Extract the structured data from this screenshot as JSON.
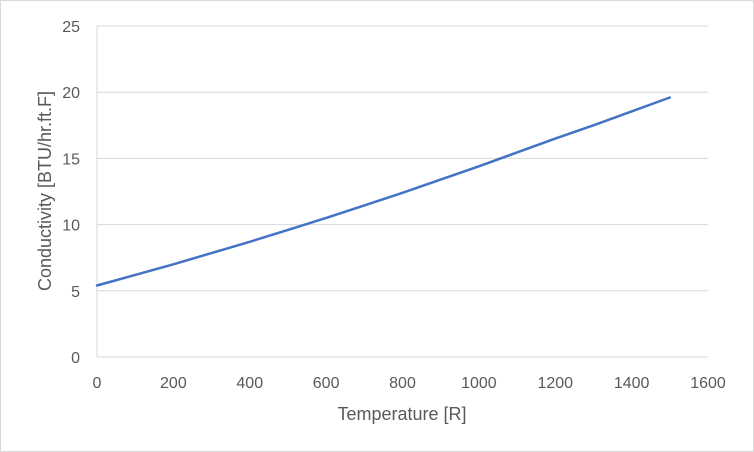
{
  "chart_data": {
    "type": "line",
    "title": "",
    "xlabel": "Temperature [R]",
    "ylabel": "Conductivity [BTU/hr.ft.F]",
    "xlim": [
      0,
      1600
    ],
    "ylim": [
      0,
      25
    ],
    "x_ticks": [
      0,
      200,
      400,
      600,
      800,
      1000,
      1200,
      1400,
      1600
    ],
    "y_ticks": [
      0,
      5,
      10,
      15,
      20,
      25
    ],
    "grid": true,
    "legend": "none",
    "series": [
      {
        "color": "#4472c4",
        "x": [
          0,
          100,
          200,
          300,
          400,
          500,
          600,
          700,
          800,
          900,
          1000,
          1100,
          1200,
          1300,
          1400,
          1500
        ],
        "y": [
          5.4,
          6.2,
          7.0,
          7.85,
          8.7,
          9.6,
          10.5,
          11.45,
          12.4,
          13.4,
          14.4,
          15.45,
          16.5,
          17.5,
          18.55,
          19.6
        ]
      }
    ]
  }
}
